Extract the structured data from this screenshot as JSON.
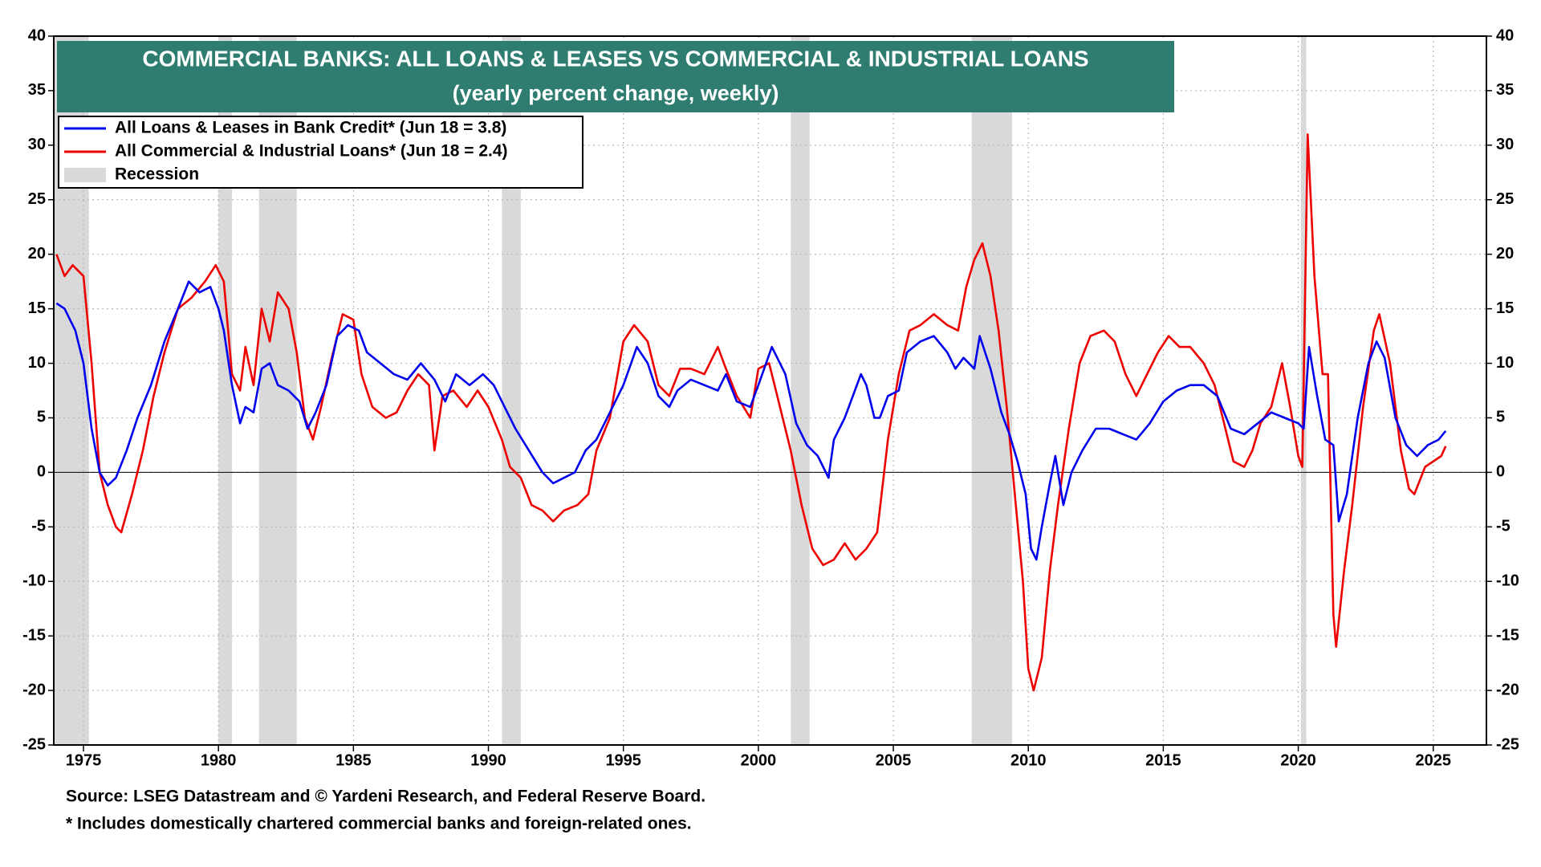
{
  "chart_data": {
    "type": "line",
    "title": "COMMERCIAL BANKS: ALL LOANS & LEASES VS COMMERCIAL & INDUSTRIAL LOANS",
    "subtitle": "(yearly percent change, weekly)",
    "title_color": "#2e7d70",
    "source": "Source: LSEG Datastream and © Yardeni Research, and Federal Reserve Board.",
    "footnote": "* Includes domestically chartered commercial banks and foreign-related ones.",
    "xlim": [
      1973.9,
      2026.97
    ],
    "xticks": [
      1975,
      1980,
      1985,
      1990,
      1995,
      2000,
      2005,
      2010,
      2015,
      2020,
      2025
    ],
    "ylim": [
      -25,
      40
    ],
    "yticks": [
      -25,
      -20,
      -15,
      -10,
      -5,
      0,
      5,
      10,
      15,
      20,
      25,
      30,
      35,
      40
    ],
    "grid": true,
    "zero_line": 0,
    "recessions": {
      "name": "Recession",
      "color": "#d9d9d9",
      "periods": [
        [
          1973.9,
          1975.2
        ],
        [
          1980.0,
          1980.5
        ],
        [
          1981.5,
          1982.9
        ],
        [
          1990.5,
          1991.2
        ],
        [
          2001.2,
          2001.9
        ],
        [
          2007.9,
          2009.4
        ],
        [
          2020.1,
          2020.3
        ]
      ]
    },
    "series": [
      {
        "name": "All Loans & Leases in Bank Credit* (Jun 18 = 3.8)",
        "color": "#0000ee",
        "x": [
          1974.0,
          1974.3,
          1974.7,
          1975.0,
          1975.3,
          1975.6,
          1975.9,
          1976.2,
          1976.6,
          1977.0,
          1977.5,
          1978.0,
          1978.5,
          1978.9,
          1979.3,
          1979.7,
          1980.0,
          1980.2,
          1980.5,
          1980.8,
          1981.0,
          1981.3,
          1981.6,
          1981.9,
          1982.2,
          1982.6,
          1983.0,
          1983.3,
          1983.6,
          1984.0,
          1984.4,
          1984.8,
          1985.2,
          1985.5,
          1986.0,
          1986.5,
          1987.0,
          1987.5,
          1988.0,
          1988.4,
          1988.8,
          1989.3,
          1989.8,
          1990.2,
          1990.6,
          1991.0,
          1991.5,
          1992.0,
          1992.4,
          1992.8,
          1993.2,
          1993.6,
          1994.0,
          1994.5,
          1995.0,
          1995.5,
          1995.9,
          1996.3,
          1996.7,
          1997.0,
          1997.5,
          1998.0,
          1998.5,
          1998.8,
          1999.2,
          1999.7,
          2000.0,
          2000.5,
          2001.0,
          2001.4,
          2001.8,
          2002.2,
          2002.6,
          2002.8,
          2003.2,
          2003.5,
          2003.8,
          2004.0,
          2004.3,
          2004.5,
          2004.8,
          2005.2,
          2005.5,
          2006.0,
          2006.5,
          2007.0,
          2007.3,
          2007.6,
          2008.0,
          2008.2,
          2008.6,
          2009.0,
          2009.3,
          2009.6,
          2009.9,
          2010.1,
          2010.3,
          2010.5,
          2010.8,
          2011.0,
          2011.3,
          2011.6,
          2012.0,
          2012.5,
          2013.0,
          2013.5,
          2014.0,
          2014.5,
          2015.0,
          2015.5,
          2016.0,
          2016.5,
          2017.0,
          2017.5,
          2018.0,
          2018.5,
          2019.0,
          2019.5,
          2020.0,
          2020.2,
          2020.4,
          2020.7,
          2021.0,
          2021.3,
          2021.5,
          2021.8,
          2022.2,
          2022.6,
          2022.9,
          2023.2,
          2023.6,
          2024.0,
          2024.4,
          2024.8,
          2025.2,
          2025.46
        ],
        "values": [
          15.5,
          15,
          13,
          10,
          4,
          0,
          -1.2,
          -0.5,
          2,
          5,
          8,
          12,
          15,
          17.5,
          16.5,
          17,
          15,
          13,
          8,
          4.5,
          6,
          5.5,
          9.5,
          10,
          8,
          7.5,
          6.5,
          4,
          5.5,
          8,
          12.5,
          13.5,
          13,
          11,
          10,
          9,
          8.5,
          10,
          8.5,
          6.5,
          9,
          8,
          9,
          8,
          6,
          4,
          2,
          0,
          -1,
          -0.5,
          0,
          2,
          3,
          5.5,
          8,
          11.5,
          10,
          7,
          6,
          7.5,
          8.5,
          8,
          7.5,
          9,
          6.5,
          6,
          8,
          11.5,
          9,
          4.5,
          2.5,
          1.5,
          -0.5,
          3,
          5,
          7,
          9,
          8,
          5,
          5,
          7,
          7.5,
          11,
          12,
          12.5,
          11,
          9.5,
          10.5,
          9.5,
          12.5,
          9.5,
          5.5,
          3.5,
          1,
          -2,
          -7,
          -8,
          -5,
          -1,
          1.5,
          -3,
          0,
          2,
          4,
          4,
          3.5,
          3,
          4.5,
          6.5,
          7.5,
          8,
          8,
          7,
          4,
          3.5,
          4.5,
          5.5,
          5,
          4.5,
          4,
          11.5,
          7,
          3,
          2.5,
          -4.5,
          -2,
          5,
          10,
          12,
          10.5,
          5,
          2.5,
          1.5,
          2.5,
          3,
          3.8
        ]
      },
      {
        "name": "All Commercial & Industrial Loans* (Jun 18 = 2.4)",
        "color": "#ee0000",
        "x": [
          1974.0,
          1974.3,
          1974.6,
          1975.0,
          1975.3,
          1975.6,
          1975.9,
          1976.2,
          1976.4,
          1976.8,
          1977.2,
          1977.6,
          1978.0,
          1978.5,
          1979.0,
          1979.5,
          1979.9,
          1980.2,
          1980.5,
          1980.8,
          1981.0,
          1981.3,
          1981.6,
          1981.9,
          1982.2,
          1982.6,
          1982.9,
          1983.2,
          1983.5,
          1983.8,
          1984.2,
          1984.6,
          1985.0,
          1985.3,
          1985.7,
          1986.2,
          1986.6,
          1987.0,
          1987.4,
          1987.8,
          1988.0,
          1988.3,
          1988.7,
          1989.2,
          1989.6,
          1990.0,
          1990.5,
          1990.8,
          1991.2,
          1991.6,
          1992.0,
          1992.4,
          1992.8,
          1993.3,
          1993.7,
          1994.0,
          1994.5,
          1995.0,
          1995.4,
          1995.9,
          1996.3,
          1996.7,
          1997.1,
          1997.5,
          1998.0,
          1998.5,
          1998.8,
          1999.2,
          1999.7,
          2000.0,
          2000.4,
          2000.8,
          2001.2,
          2001.6,
          2002.0,
          2002.4,
          2002.8,
          2003.2,
          2003.6,
          2004.0,
          2004.4,
          2004.8,
          2005.2,
          2005.6,
          2006.0,
          2006.5,
          2007.0,
          2007.4,
          2007.7,
          2008.0,
          2008.3,
          2008.6,
          2008.9,
          2009.2,
          2009.5,
          2009.8,
          2010.0,
          2010.2,
          2010.5,
          2010.8,
          2011.1,
          2011.5,
          2011.9,
          2012.3,
          2012.8,
          2013.2,
          2013.6,
          2014.0,
          2014.4,
          2014.8,
          2015.2,
          2015.6,
          2016.0,
          2016.5,
          2016.9,
          2017.3,
          2017.6,
          2018.0,
          2018.3,
          2018.6,
          2019.0,
          2019.4,
          2019.7,
          2020.0,
          2020.15,
          2020.35,
          2020.6,
          2020.9,
          2021.1,
          2021.3,
          2021.4,
          2021.7,
          2022.0,
          2022.4,
          2022.8,
          2023.0,
          2023.4,
          2023.8,
          2024.1,
          2024.3,
          2024.7,
          2025.0,
          2025.3,
          2025.46
        ],
        "values": [
          20,
          18,
          19,
          18,
          10,
          0,
          -3,
          -5,
          -5.5,
          -2,
          2,
          7,
          11,
          15,
          16,
          17.5,
          19,
          17.5,
          9,
          7.5,
          11.5,
          8,
          15,
          12,
          16.5,
          15,
          11,
          5,
          3,
          6,
          10.5,
          14.5,
          14,
          9,
          6,
          5,
          5.5,
          7.5,
          9,
          8,
          2,
          7,
          7.5,
          6,
          7.5,
          6,
          3,
          0.5,
          -0.5,
          -3,
          -3.5,
          -4.5,
          -3.5,
          -3,
          -2,
          2,
          5,
          12,
          13.5,
          12,
          8,
          7,
          9.5,
          9.5,
          9,
          11.5,
          9.5,
          7,
          5,
          9.5,
          10,
          6,
          2,
          -3,
          -7,
          -8.5,
          -8,
          -6.5,
          -8,
          -7,
          -5.5,
          3,
          9,
          13,
          13.5,
          14.5,
          13.5,
          13,
          17,
          19.5,
          21,
          18,
          13,
          6,
          -2,
          -10,
          -18,
          -20,
          -17,
          -9,
          -3,
          4,
          10,
          12.5,
          13,
          12,
          9,
          7,
          9,
          11,
          12.5,
          11.5,
          11.5,
          10,
          8,
          4,
          1,
          0.5,
          2,
          4.5,
          6,
          10,
          6,
          1.5,
          0.5,
          31,
          18,
          9,
          9,
          -13,
          -16,
          -9,
          -3,
          6,
          13,
          14.5,
          10,
          2,
          -1.5,
          -2,
          0.5,
          1,
          1.5,
          2.4
        ]
      }
    ]
  }
}
